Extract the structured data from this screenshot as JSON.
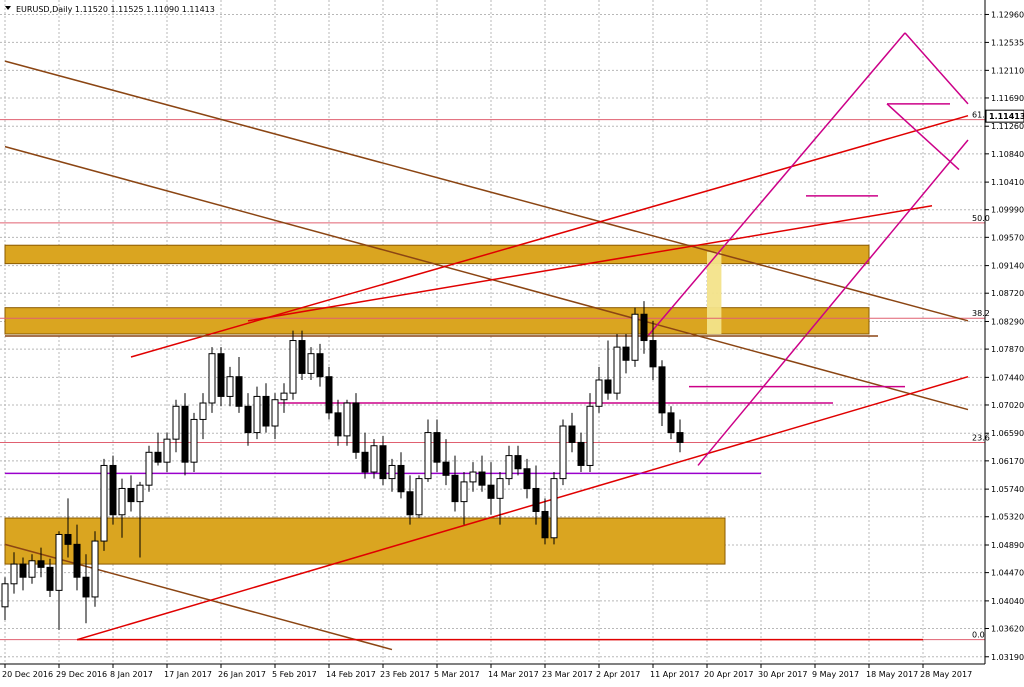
{
  "chart_data": {
    "type": "candlestick",
    "header": "EURUSD,Daily  1.11520 1.11525 1.11090 1.11413",
    "price_label": "1.11413",
    "ylim": [
      1.0308,
      1.1318
    ],
    "yticks": [
      "1.12960",
      "1.12535",
      "1.12110",
      "1.11690",
      "1.11260",
      "1.10840",
      "1.10410",
      "1.09990",
      "1.09570",
      "1.09140",
      "1.08720",
      "1.08290",
      "1.07870",
      "1.07440",
      "1.07020",
      "1.06590",
      "1.06170",
      "1.05740",
      "1.05320",
      "1.04890",
      "1.04470",
      "1.04040",
      "1.03620",
      "1.03190"
    ],
    "date_labels": [
      {
        "label": "20 Dec 2016",
        "i": 0
      },
      {
        "label": "29 Dec 2016",
        "i": 6
      },
      {
        "label": "8 Jan 2017",
        "i": 12
      },
      {
        "label": "17 Jan 2017",
        "i": 18
      },
      {
        "label": "26 Jan 2017",
        "i": 24
      },
      {
        "label": "5 Feb 2017",
        "i": 30
      },
      {
        "label": "14 Feb 2017",
        "i": 36
      },
      {
        "label": "23 Feb 2017",
        "i": 42
      },
      {
        "label": "5 Mar 2017",
        "i": 48
      },
      {
        "label": "14 Mar 2017",
        "i": 54
      },
      {
        "label": "23 Mar 2017",
        "i": 60
      },
      {
        "label": "2 Apr 2017",
        "i": 66
      },
      {
        "label": "11 Apr 2017",
        "i": 72
      },
      {
        "label": "20 Apr 2017",
        "i": 78
      },
      {
        "label": "30 Apr 2017",
        "i": 84
      },
      {
        "label": "9 May 2017",
        "i": 90
      },
      {
        "label": "18 May 2017",
        "i": 96
      },
      {
        "label": "28 May 2017",
        "i": 102
      }
    ],
    "fib_levels": [
      {
        "label": "61.8",
        "price": 1.1136
      },
      {
        "label": "50.0",
        "price": 1.0979
      },
      {
        "label": "38.2",
        "price": 1.0834
      },
      {
        "label": "23.6",
        "price": 1.0645
      },
      {
        "label": "0.0",
        "price": 1.0345
      }
    ],
    "zones": [
      {
        "i1": 0,
        "i2": 96,
        "top": 1.0945,
        "bottom": 1.0917
      },
      {
        "i1": 0,
        "i2": 96,
        "top": 1.085,
        "bottom": 1.081
      },
      {
        "i1": 0,
        "i2": 80,
        "top": 1.053,
        "bottom": 1.046
      }
    ],
    "highlight": {
      "i1": 78,
      "i2": 79.6,
      "top": 1.0935,
      "bottom": 1.081
    },
    "lines": [
      {
        "color": "#8b4513",
        "x1": 0,
        "y1": 1.1225,
        "x2": 107,
        "y2": 1.083
      },
      {
        "color": "#8b4513",
        "x1": 0,
        "y1": 1.1095,
        "x2": 107,
        "y2": 1.0695
      },
      {
        "color": "#8b4513",
        "x1": 0,
        "y1": 1.049,
        "x2": 43,
        "y2": 1.033
      },
      {
        "color": "#e00000",
        "x1": 14,
        "y1": 1.0775,
        "x2": 107,
        "y2": 1.1142
      },
      {
        "color": "#e00000",
        "x1": 27,
        "y1": 1.083,
        "x2": 103,
        "y2": 1.1005
      },
      {
        "color": "#e00000",
        "x1": 8,
        "y1": 1.0345,
        "x2": 107,
        "y2": 1.0745
      },
      {
        "color": "#e00000",
        "x1": 8,
        "y1": 1.0345,
        "x2": 102,
        "y2": 1.0345
      },
      {
        "color": "#cc0088",
        "x1": 71,
        "y1": 1.08,
        "x2": 100,
        "y2": 1.1268
      },
      {
        "color": "#cc0088",
        "x1": 77,
        "y1": 1.061,
        "x2": 107,
        "y2": 1.1105
      },
      {
        "color": "#cc0088",
        "x1": 100,
        "y1": 1.1268,
        "x2": 107,
        "y2": 1.116
      },
      {
        "color": "#cc0088",
        "x1": 98,
        "y1": 1.116,
        "x2": 106,
        "y2": 1.106
      },
      {
        "color": "#cc0088",
        "x1": 98,
        "y1": 1.116,
        "x2": 105,
        "y2": 1.116
      },
      {
        "color": "#cc0088",
        "x1": 89,
        "y1": 1.102,
        "x2": 97,
        "y2": 1.102
      },
      {
        "color": "#cc0088",
        "x1": 76,
        "y1": 1.073,
        "x2": 100,
        "y2": 1.073
      },
      {
        "color": "#cc0088",
        "x1": 30,
        "y1": 1.0705,
        "x2": 92,
        "y2": 1.0705
      },
      {
        "color": "#9a00cc",
        "x1": 0,
        "y1": 1.0598,
        "x2": 84,
        "y2": 1.0598
      },
      {
        "color": "#8b4513",
        "x1": 0,
        "y1": 1.0807,
        "x2": 97,
        "y2": 1.0807
      }
    ],
    "candles": [
      [
        1.0395,
        1.044,
        1.0375,
        1.043
      ],
      [
        1.043,
        1.0478,
        1.0415,
        1.046
      ],
      [
        1.046,
        1.047,
        1.042,
        1.044
      ],
      [
        1.044,
        1.0475,
        1.043,
        1.0465
      ],
      [
        1.0465,
        1.0485,
        1.044,
        1.0455
      ],
      [
        1.0455,
        1.0468,
        1.041,
        1.042
      ],
      [
        1.042,
        1.051,
        1.036,
        1.0505
      ],
      [
        1.0505,
        1.056,
        1.047,
        1.049
      ],
      [
        1.049,
        1.052,
        1.042,
        1.044
      ],
      [
        1.044,
        1.0475,
        1.037,
        1.041
      ],
      [
        1.041,
        1.051,
        1.0395,
        1.0495
      ],
      [
        1.0495,
        1.062,
        1.048,
        1.061
      ],
      [
        1.061,
        1.0625,
        1.052,
        1.0535
      ],
      [
        1.0535,
        1.059,
        1.05,
        1.0575
      ],
      [
        1.0575,
        1.0595,
        1.054,
        1.0555
      ],
      [
        1.0555,
        1.0585,
        1.047,
        1.058
      ],
      [
        1.058,
        1.064,
        1.057,
        1.063
      ],
      [
        1.063,
        1.066,
        1.061,
        1.0615
      ],
      [
        1.0615,
        1.066,
        1.06,
        1.065
      ],
      [
        1.065,
        1.071,
        1.063,
        1.07
      ],
      [
        1.07,
        1.072,
        1.0595,
        1.0615
      ],
      [
        1.0615,
        1.069,
        1.06,
        1.068
      ],
      [
        1.068,
        1.072,
        1.065,
        1.0705
      ],
      [
        1.0705,
        1.079,
        1.069,
        1.078
      ],
      [
        1.078,
        1.079,
        1.07,
        1.0715
      ],
      [
        1.0715,
        1.076,
        1.07,
        1.0745
      ],
      [
        1.0745,
        1.0775,
        1.069,
        1.07
      ],
      [
        1.07,
        1.072,
        1.064,
        1.066
      ],
      [
        1.066,
        1.073,
        1.065,
        1.0715
      ],
      [
        1.0715,
        1.0735,
        1.066,
        1.067
      ],
      [
        1.067,
        1.072,
        1.065,
        1.071
      ],
      [
        1.071,
        1.0735,
        1.069,
        1.072
      ],
      [
        1.072,
        1.0815,
        1.071,
        1.08
      ],
      [
        1.08,
        1.0815,
        1.074,
        1.075
      ],
      [
        1.075,
        1.079,
        1.074,
        1.078
      ],
      [
        1.078,
        1.0795,
        1.073,
        1.0745
      ],
      [
        1.0745,
        1.076,
        1.068,
        1.069
      ],
      [
        1.069,
        1.071,
        1.064,
        1.0655
      ],
      [
        1.0655,
        1.071,
        1.064,
        1.0705
      ],
      [
        1.0705,
        1.072,
        1.062,
        1.063
      ],
      [
        1.063,
        1.066,
        1.059,
        1.06
      ],
      [
        1.06,
        1.065,
        1.059,
        1.064
      ],
      [
        1.064,
        1.0655,
        1.058,
        1.059
      ],
      [
        1.059,
        1.062,
        1.057,
        1.061
      ],
      [
        1.061,
        1.063,
        1.056,
        1.057
      ],
      [
        1.057,
        1.0595,
        1.052,
        1.0535
      ],
      [
        1.0535,
        1.0595,
        1.053,
        1.059
      ],
      [
        1.059,
        1.068,
        1.0585,
        1.066
      ],
      [
        1.066,
        1.068,
        1.06,
        1.0615
      ],
      [
        1.0615,
        1.065,
        1.058,
        1.0595
      ],
      [
        1.0595,
        1.0625,
        1.054,
        1.0555
      ],
      [
        1.0555,
        1.06,
        1.052,
        1.0585
      ],
      [
        1.0585,
        1.0615,
        1.057,
        1.06
      ],
      [
        1.06,
        1.0625,
        1.057,
        1.058
      ],
      [
        1.058,
        1.0615,
        1.0535,
        1.056
      ],
      [
        1.056,
        1.06,
        1.052,
        1.059
      ],
      [
        1.059,
        1.064,
        1.058,
        1.0625
      ],
      [
        1.0625,
        1.064,
        1.0595,
        1.0605
      ],
      [
        1.0605,
        1.062,
        1.056,
        1.0575
      ],
      [
        1.0575,
        1.061,
        1.052,
        1.054
      ],
      [
        1.054,
        1.056,
        1.049,
        1.05
      ],
      [
        1.05,
        1.06,
        1.049,
        1.059
      ],
      [
        1.059,
        1.068,
        1.058,
        1.067
      ],
      [
        1.067,
        1.069,
        1.063,
        1.0645
      ],
      [
        1.0645,
        1.066,
        1.06,
        1.061
      ],
      [
        1.061,
        1.072,
        1.06,
        1.07
      ],
      [
        1.07,
        1.076,
        1.069,
        1.074
      ],
      [
        1.074,
        1.08,
        1.071,
        1.072
      ],
      [
        1.072,
        1.081,
        1.071,
        1.079
      ],
      [
        1.079,
        1.081,
        1.075,
        1.077
      ],
      [
        1.077,
        1.085,
        1.076,
        1.084
      ],
      [
        1.084,
        1.086,
        1.078,
        1.08
      ],
      [
        1.08,
        1.083,
        1.074,
        1.076
      ],
      [
        1.076,
        1.077,
        1.067,
        1.069
      ],
      [
        1.069,
        1.07,
        1.065,
        1.066
      ],
      [
        1.066,
        1.068,
        1.063,
        1.0645
      ]
    ]
  }
}
